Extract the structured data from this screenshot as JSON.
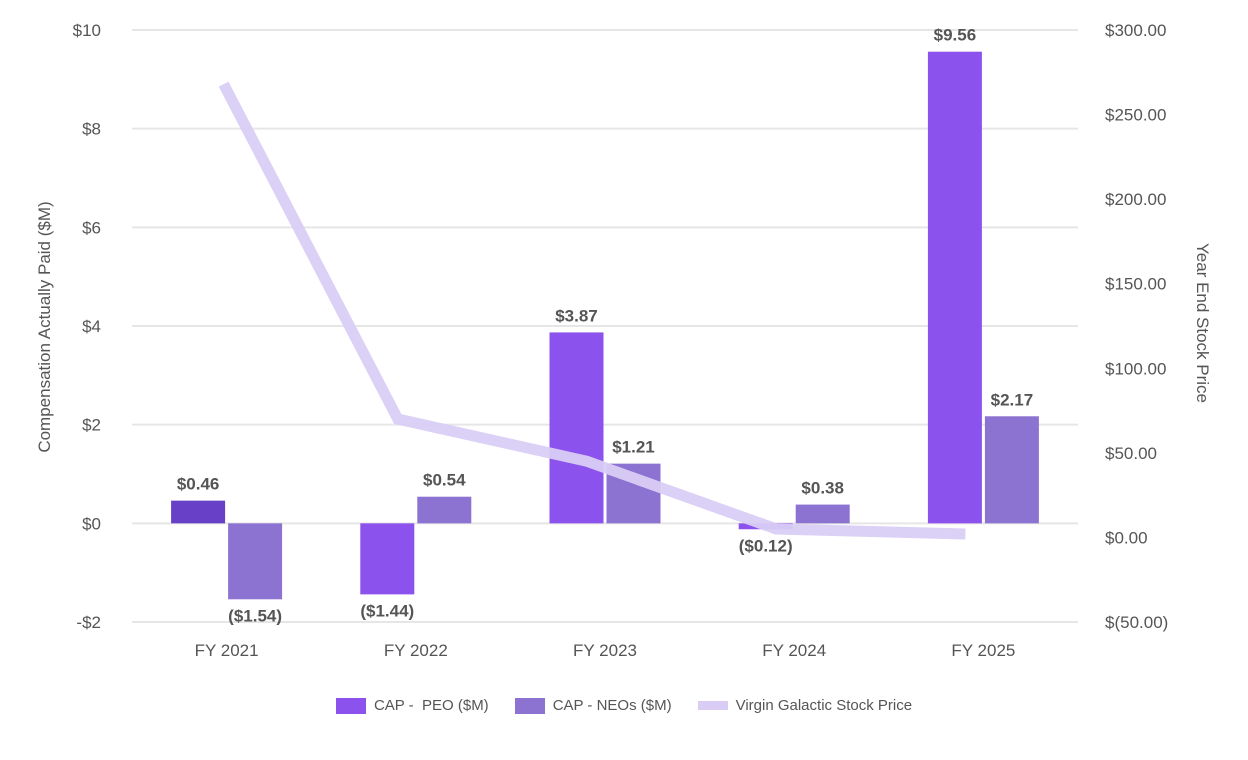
{
  "chart_data": {
    "type": "bar",
    "categories": [
      "FY 2021",
      "FY 2022",
      "FY 2023",
      "FY 2024",
      "FY 2025"
    ],
    "series": [
      {
        "name": "CAP -  PEO ($M)",
        "type": "bar",
        "axis": "left",
        "color": "#8c52ed",
        "first_bar_color": "#6740c7",
        "values": [
          0.46,
          -1.44,
          3.87,
          -0.12,
          9.56
        ],
        "labels": [
          "$0.46",
          "($1.44)",
          "$3.87",
          "($0.12)",
          "$9.56"
        ]
      },
      {
        "name": "CAP - NEOs ($M)",
        "type": "bar",
        "axis": "left",
        "color": "#8c72d1",
        "values": [
          -1.54,
          0.54,
          1.21,
          0.38,
          2.17
        ],
        "labels": [
          "($1.54)",
          "$0.54",
          "$1.21",
          "$0.38",
          "$2.17"
        ]
      },
      {
        "name": "Virgin Galactic Stock Price",
        "type": "line",
        "axis": "right",
        "color": "#d9cdf6",
        "values": [
          268,
          70,
          45,
          5,
          2
        ]
      }
    ],
    "y_left": {
      "label": "Compensation Actually Paid ($M)",
      "range": [
        -2,
        10
      ],
      "ticks": [
        10,
        8,
        6,
        4,
        2,
        0,
        -2
      ],
      "tick_labels": [
        "$10",
        "$8",
        "$6",
        "$4",
        "$2",
        "$0",
        "-$2"
      ]
    },
    "y_right": {
      "label": "Year End Stock Price",
      "range": [
        -50,
        300
      ],
      "ticks": [
        300,
        250,
        200,
        150,
        100,
        50,
        0,
        -50
      ],
      "tick_labels": [
        "$300.00",
        "$250.00",
        "$200.00",
        "$150.00",
        "$100.00",
        "$50.00",
        "$0.00",
        "$(50.00)"
      ]
    },
    "grid": true,
    "legend_position": "bottom-center",
    "gridline_color": "#e6e6e6"
  }
}
